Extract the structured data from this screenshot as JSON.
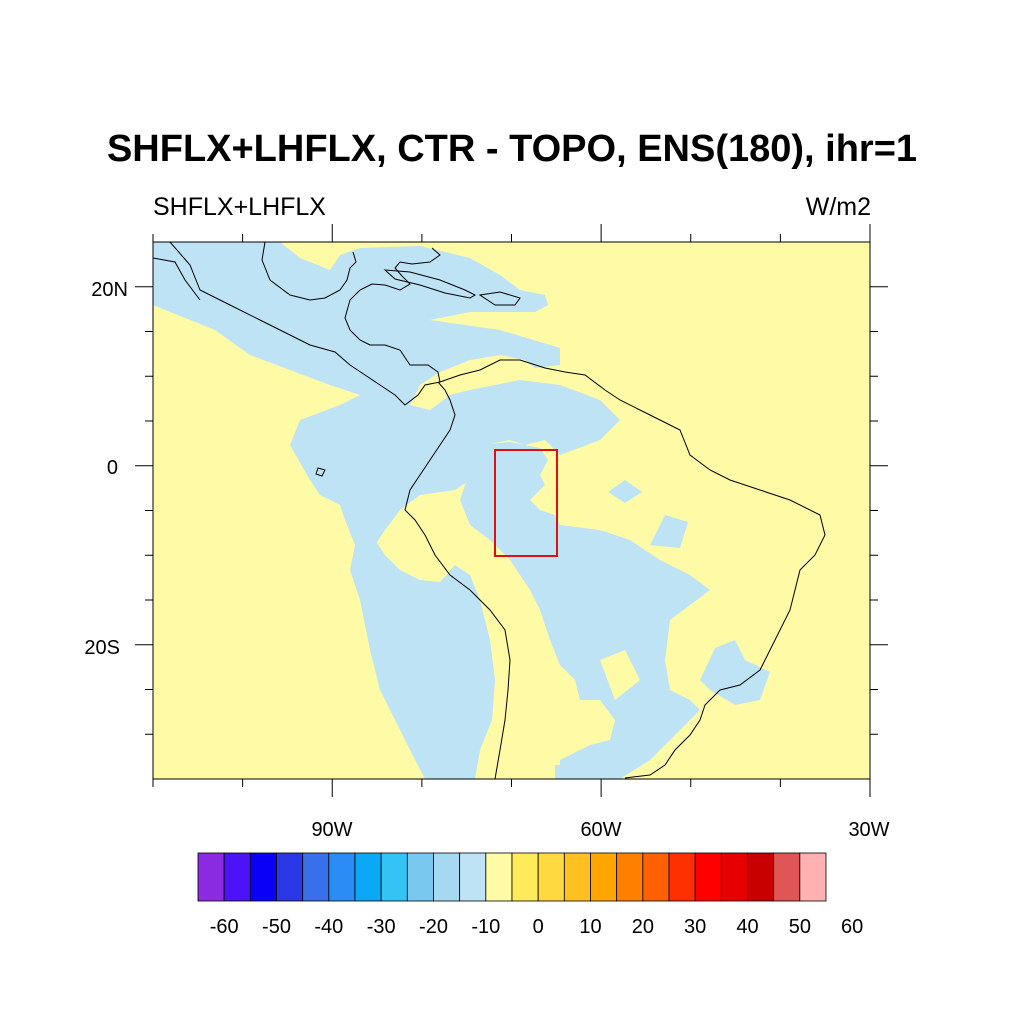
{
  "title": "SHFLX+LHFLX, CTR - TOPO, ENS(180), ihr=1",
  "left_subtitle": "SHFLX+LHFLX",
  "right_subtitle": "W/m2",
  "map": {
    "projection": "cylindrical-equidistant",
    "lon_range": [
      -110,
      -30
    ],
    "lat_range": [
      -35,
      25
    ],
    "x_tick_labels": [
      "90W",
      "60W",
      "30W"
    ],
    "y_tick_labels": [
      "20N",
      "0",
      "20S"
    ],
    "fill_colors": {
      "positive": "#FFFAA6",
      "negative": "#BDE3F5",
      "coastline": "#000000",
      "box": "#E01010"
    },
    "highlight_box": {
      "lon": [
        -72,
        -65
      ],
      "lat": [
        -10,
        2
      ],
      "color": "#E01010"
    }
  },
  "colorbar": {
    "colors": [
      "#8A2BE2",
      "#4B13F5",
      "#0A00F5",
      "#2A38E6",
      "#3A6FEA",
      "#2C8CF5",
      "#0AA8F5",
      "#33C4F5",
      "#78C8F0",
      "#A6D8F2",
      "#BDE3F5",
      "#FFFAA6",
      "#FFEB5A",
      "#FFD93F",
      "#FFC020",
      "#FFA500",
      "#FF8000",
      "#FF6000",
      "#FF3000",
      "#FF0000",
      "#E60000",
      "#C80000",
      "#E05555",
      "#FFB0B0"
    ],
    "labels": [
      "-60",
      "-50",
      "-40",
      "-30",
      "-20",
      "-10",
      "0",
      "10",
      "20",
      "30",
      "40",
      "50",
      "60"
    ]
  }
}
